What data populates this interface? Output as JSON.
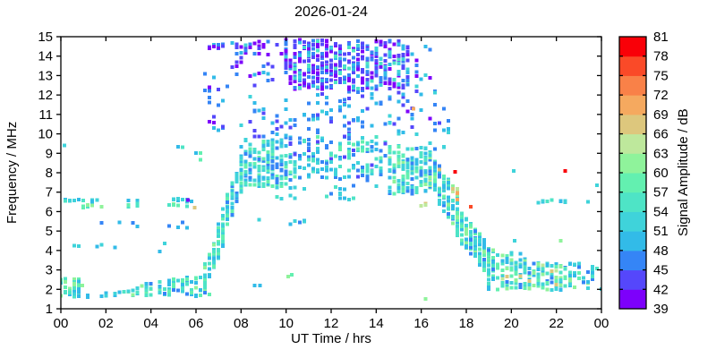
{
  "chart_data": {
    "type": "scatter",
    "title": "2026-01-24",
    "xlabel": "UT Time / hrs",
    "ylabel": "Frequency / MHz",
    "xlim": [
      0,
      24
    ],
    "ylim": [
      1,
      15
    ],
    "x_ticks": {
      "values": [
        0,
        2,
        4,
        6,
        8,
        10,
        12,
        14,
        16,
        18,
        20,
        22,
        24
      ],
      "labels": [
        "00",
        "02",
        "04",
        "06",
        "08",
        "10",
        "12",
        "14",
        "16",
        "18",
        "20",
        "22",
        "00"
      ]
    },
    "y_ticks": {
      "values": [
        1,
        2,
        3,
        4,
        5,
        6,
        7,
        8,
        9,
        10,
        11,
        12,
        13,
        14,
        15
      ],
      "labels": [
        "1",
        "2",
        "3",
        "4",
        "5",
        "6",
        "7",
        "8",
        "9",
        "10",
        "11",
        "12",
        "13",
        "14",
        "15"
      ]
    },
    "grid": false,
    "background": "#FFFFFF",
    "axis_color": "#000000",
    "marker": {
      "shape": "square",
      "size": 4
    },
    "colorbar": {
      "label": "Signal Amplitude / dB",
      "position": "right",
      "levels": [
        39,
        42,
        45,
        48,
        51,
        54,
        57,
        60,
        63,
        66,
        69,
        72,
        75,
        78,
        81
      ],
      "colors": [
        "#7D00FB",
        "#5547FB",
        "#3585F6",
        "#32BBE8",
        "#3FD3DA",
        "#4EE4C6",
        "#63F0B0",
        "#8FF39B",
        "#BEE89C",
        "#DDC77D",
        "#F5A95F",
        "#F98148",
        "#FA4A28",
        "#F90008"
      ]
    },
    "clusters": [
      {
        "name": "night-low-band-early",
        "style": "band",
        "t": [
          0.0,
          0.95
        ],
        "f": [
          1.6,
          2.55
        ],
        "n": 45,
        "amp": [
          48,
          62
        ]
      },
      {
        "name": "night-low-sporadic",
        "style": "band",
        "t": [
          0.9,
          2.9
        ],
        "f": [
          1.6,
          1.85
        ],
        "n": 8,
        "amp": [
          48,
          54
        ]
      },
      {
        "name": "pre-dawn-low-band",
        "style": "wedge",
        "t": [
          2.8,
          6.6
        ],
        "f_lo": 1.65,
        "f_hi": [
          2.1,
          2.85
        ],
        "n": 90,
        "amp": [
          46,
          61
        ]
      },
      {
        "name": "es-row-6.5-early",
        "style": "band",
        "t": [
          0.1,
          1.7
        ],
        "f": [
          6.5,
          6.68
        ],
        "n": 13,
        "amp": [
          48,
          56
        ]
      },
      {
        "name": "es-row-6.2-early",
        "style": "band",
        "t": [
          0.9,
          1.8
        ],
        "f": [
          6.2,
          6.38
        ],
        "n": 6,
        "amp": [
          56,
          62
        ]
      },
      {
        "name": "es-row-6.5-mid",
        "style": "band",
        "t": [
          2.9,
          3.5
        ],
        "f": [
          6.45,
          6.6
        ],
        "n": 4,
        "amp": [
          48,
          56
        ]
      },
      {
        "name": "es-row-6.2-mid",
        "style": "band",
        "t": [
          2.9,
          3.7
        ],
        "f": [
          6.25,
          6.4
        ],
        "n": 5,
        "amp": [
          52,
          60
        ]
      },
      {
        "name": "es-row-6.5-late",
        "style": "band",
        "t": [
          4.4,
          5.9
        ],
        "f": [
          6.5,
          6.66
        ],
        "n": 11,
        "amp": [
          46,
          56
        ]
      },
      {
        "name": "es-row-6.2-late",
        "style": "band",
        "t": [
          4.6,
          5.7
        ],
        "f": [
          6.25,
          6.4
        ],
        "n": 5,
        "amp": [
          54,
          62
        ]
      },
      {
        "name": "early-5mhz-scatter",
        "style": "band",
        "t": [
          1.0,
          5.8
        ],
        "f": [
          5.15,
          5.6
        ],
        "n": 8,
        "amp": [
          46,
          52
        ]
      },
      {
        "name": "early-4mhz-scatter",
        "style": "band",
        "t": [
          0.3,
          4.8
        ],
        "f": [
          3.9,
          4.6
        ],
        "n": 7,
        "amp": [
          48,
          56
        ]
      },
      {
        "name": "pre-sunrise-9mhz",
        "style": "band",
        "t": [
          4.9,
          6.2
        ],
        "f": [
          8.6,
          9.5
        ],
        "n": 5,
        "amp": [
          48,
          60
        ]
      },
      {
        "name": "sunrise-ramp-lower",
        "style": "ramp",
        "t": [
          6.4,
          7.3
        ],
        "f_center": [
          2.7,
          5.0
        ],
        "f_spread": 1.3,
        "n": 60,
        "amp": [
          48,
          62
        ]
      },
      {
        "name": "sunrise-ramp-upper",
        "style": "ramp",
        "t": [
          7.0,
          8.05
        ],
        "f_center": [
          5.0,
          7.9
        ],
        "f_spread": 1.7,
        "n": 85,
        "amp": [
          46,
          60
        ]
      },
      {
        "name": "sunrise-high-purple",
        "style": "band",
        "t": [
          6.3,
          7.4
        ],
        "f": [
          9.6,
          13.2
        ],
        "n": 18,
        "amp": [
          39,
          50
        ]
      },
      {
        "name": "row-14.5-early",
        "style": "band",
        "t": [
          6.5,
          7.4
        ],
        "f": [
          14.4,
          14.72
        ],
        "n": 10,
        "amp": [
          39,
          52
        ]
      },
      {
        "name": "row-14.5-mid",
        "style": "band",
        "t": [
          7.8,
          8.5
        ],
        "f": [
          14.4,
          14.65
        ],
        "n": 8,
        "amp": [
          39,
          46
        ]
      },
      {
        "name": "row-14.5-late",
        "style": "band",
        "t": [
          8.8,
          9.2
        ],
        "f": [
          14.45,
          14.6
        ],
        "n": 3,
        "amp": [
          39,
          46
        ]
      },
      {
        "name": "morning-high-sparse",
        "style": "band",
        "t": [
          7.5,
          9.9
        ],
        "f": [
          12.4,
          14.8
        ],
        "n": 35,
        "amp": [
          39,
          52
        ]
      },
      {
        "name": "day-f2-band-morning",
        "style": "band",
        "t": [
          8.0,
          10.0
        ],
        "f": [
          7.3,
          9.7
        ],
        "n": 150,
        "amp": [
          46,
          60
        ]
      },
      {
        "name": "day-f2-band-noon",
        "style": "band",
        "t": [
          10.0,
          14.5
        ],
        "f": [
          7.6,
          9.85
        ],
        "n": 160,
        "amp": [
          44,
          58
        ]
      },
      {
        "name": "day-f2-band-afternoon",
        "style": "band",
        "t": [
          14.5,
          16.3
        ],
        "f": [
          6.9,
          9.4
        ],
        "n": 130,
        "amp": [
          46,
          62
        ]
      },
      {
        "name": "day-mid-sparse",
        "style": "band",
        "t": [
          8.0,
          16.0
        ],
        "f": [
          9.85,
          12.3
        ],
        "n": 110,
        "amp": [
          42,
          52
        ]
      },
      {
        "name": "day-7mhz-sparse",
        "style": "band",
        "t": [
          9.5,
          14.0
        ],
        "f": [
          6.6,
          7.4
        ],
        "n": 22,
        "amp": [
          46,
          56
        ]
      },
      {
        "name": "day-5.5mhz-sparse",
        "style": "band",
        "t": [
          8.4,
          11.0
        ],
        "f": [
          5.3,
          5.6
        ],
        "n": 6,
        "amp": [
          46,
          52
        ]
      },
      {
        "name": "noon-high-purple-main",
        "style": "band",
        "t": [
          9.9,
          15.5
        ],
        "f": [
          12.3,
          14.85
        ],
        "n": 330,
        "amp": [
          39,
          46
        ]
      },
      {
        "name": "noon-high-cyan-mix",
        "style": "band",
        "t": [
          9.9,
          15.5
        ],
        "f": [
          12.3,
          14.8
        ],
        "n": 110,
        "amp": [
          46,
          56
        ]
      },
      {
        "name": "afternoon-high-sparse",
        "style": "band",
        "t": [
          15.4,
          16.6
        ],
        "f": [
          10.3,
          14.6
        ],
        "n": 22,
        "amp": [
          39,
          52
        ]
      },
      {
        "name": "afternoon-10mhz-sparse",
        "style": "band",
        "t": [
          16.3,
          17.3
        ],
        "f": [
          9.2,
          11.8
        ],
        "n": 12,
        "amp": [
          42,
          52
        ]
      },
      {
        "name": "sunset-ramp-upper",
        "style": "ramp",
        "t": [
          16.2,
          17.7
        ],
        "f_center": [
          8.4,
          5.8
        ],
        "f_spread": 2.0,
        "n": 130,
        "amp": [
          46,
          64
        ]
      },
      {
        "name": "sunset-khaki-sprinkle",
        "style": "band",
        "t": [
          15.8,
          18.3
        ],
        "f": [
          5.8,
          8.2
        ],
        "n": 10,
        "amp": [
          64,
          70
        ]
      },
      {
        "name": "sunset-ramp-lower",
        "style": "ramp",
        "t": [
          17.6,
          19.3
        ],
        "f_center": [
          5.4,
          3.1
        ],
        "f_spread": 1.6,
        "n": 150,
        "amp": [
          46,
          62
        ]
      },
      {
        "name": "evening-low-band",
        "style": "band",
        "t": [
          19.0,
          24.0
        ],
        "f": [
          1.95,
          3.35
        ],
        "n": 170,
        "amp": [
          46,
          62
        ]
      },
      {
        "name": "evening-bump",
        "style": "band",
        "t": [
          19.3,
          20.7
        ],
        "f": [
          3.0,
          3.9
        ],
        "n": 35,
        "amp": [
          48,
          62
        ]
      },
      {
        "name": "evening-khaki-sprinkle",
        "style": "band",
        "t": [
          19.2,
          23.8
        ],
        "f": [
          2.0,
          3.3
        ],
        "n": 8,
        "amp": [
          63,
          69
        ]
      },
      {
        "name": "evening-es-row",
        "style": "band",
        "t": [
          21.2,
          23.5
        ],
        "f": [
          6.45,
          6.62
        ],
        "n": 11,
        "amp": [
          50,
          56
        ]
      }
    ],
    "points": [
      {
        "t": 0.15,
        "f": 9.4,
        "amp": 52
      },
      {
        "t": 5.65,
        "f": 6.6,
        "amp": 40
      },
      {
        "t": 5.95,
        "f": 6.2,
        "amp": 67
      },
      {
        "t": 15.65,
        "f": 11.3,
        "amp": 71
      },
      {
        "t": 17.5,
        "f": 8.05,
        "amp": 80
      },
      {
        "t": 18.2,
        "f": 6.25,
        "amp": 75
      },
      {
        "t": 22.4,
        "f": 8.1,
        "amp": 80
      },
      {
        "t": 20.1,
        "f": 8.1,
        "amp": 52
      },
      {
        "t": 23.8,
        "f": 7.35,
        "amp": 52
      },
      {
        "t": 16.2,
        "f": 1.5,
        "amp": 60
      },
      {
        "t": 10.1,
        "f": 2.65,
        "amp": 60
      },
      {
        "t": 10.25,
        "f": 2.75,
        "amp": 58
      },
      {
        "t": 8.6,
        "f": 2.2,
        "amp": 48
      },
      {
        "t": 8.85,
        "f": 2.2,
        "amp": 48
      },
      {
        "t": 20.15,
        "f": 4.5,
        "amp": 52
      },
      {
        "t": 22.2,
        "f": 4.5,
        "amp": 61
      }
    ]
  }
}
